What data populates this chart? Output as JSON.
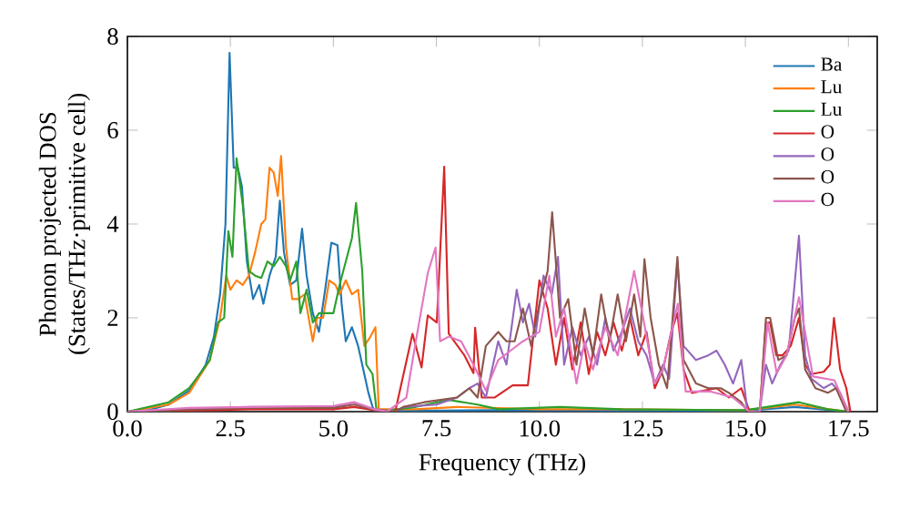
{
  "chart_data": {
    "type": "line",
    "xlabel": "Frequency (THz)",
    "ylabel": "Phonon projected DOS\n(States/THz·primitive cell)",
    "xlim": [
      0,
      18.2
    ],
    "ylim": [
      0,
      8
    ],
    "xticks": [
      {
        "value": 0,
        "label": "0.0"
      },
      {
        "value": 2.5,
        "label": "2.5"
      },
      {
        "value": 5,
        "label": "5.0"
      },
      {
        "value": 7.5,
        "label": "7.5"
      },
      {
        "value": 10,
        "label": "10.0"
      },
      {
        "value": 12.5,
        "label": "12.5"
      },
      {
        "value": 15,
        "label": "15.0"
      },
      {
        "value": 17.5,
        "label": "17.5"
      }
    ],
    "yticks": [
      0,
      2,
      4,
      6,
      8
    ],
    "grid": false,
    "legend": "top right",
    "marker": "none",
    "line_style": "solid",
    "series": [
      {
        "name": "Ba",
        "color": "#1f77b4",
        "x": [
          0,
          0.5,
          1.0,
          1.5,
          1.9,
          2.1,
          2.25,
          2.38,
          2.48,
          2.58,
          2.68,
          2.78,
          2.9,
          3.05,
          3.2,
          3.3,
          3.45,
          3.6,
          3.7,
          3.8,
          3.95,
          4.1,
          4.24,
          4.35,
          4.5,
          4.65,
          4.8,
          4.95,
          5.1,
          5.2,
          5.3,
          5.45,
          5.6,
          5.75,
          5.85,
          5.95,
          6.0,
          7.0,
          9.0,
          12.0,
          15.0,
          16.2,
          17.5
        ],
        "values": [
          0,
          0.03,
          0.15,
          0.45,
          1.0,
          1.6,
          2.5,
          4.0,
          7.65,
          5.2,
          5.2,
          4.8,
          3.2,
          2.4,
          2.7,
          2.3,
          2.9,
          3.3,
          4.5,
          3.4,
          2.7,
          2.8,
          3.9,
          2.9,
          2.1,
          1.7,
          2.6,
          3.6,
          3.55,
          2.3,
          1.5,
          1.8,
          1.4,
          0.8,
          0.4,
          0.1,
          0.02,
          0.02,
          0.03,
          0.02,
          0.02,
          0.1,
          0
        ]
      },
      {
        "name": "Lu",
        "color": "#ff7f0e",
        "x": [
          0,
          1.0,
          1.5,
          2.0,
          2.25,
          2.4,
          2.5,
          2.65,
          2.8,
          2.95,
          3.1,
          3.25,
          3.35,
          3.45,
          3.55,
          3.65,
          3.73,
          3.85,
          4.0,
          4.15,
          4.3,
          4.5,
          4.6,
          4.75,
          4.9,
          5.05,
          5.15,
          5.3,
          5.45,
          5.6,
          5.75,
          5.9,
          6.02,
          6.1,
          7.0,
          8.0,
          10.0,
          12.0,
          15.0,
          16.2,
          17.5
        ],
        "values": [
          0,
          0.15,
          0.4,
          1.1,
          2.0,
          2.9,
          2.6,
          2.8,
          2.7,
          2.9,
          3.4,
          4.0,
          4.1,
          5.2,
          5.1,
          4.6,
          5.45,
          3.5,
          2.4,
          2.4,
          2.5,
          1.5,
          2.0,
          2.0,
          2.8,
          2.7,
          2.5,
          2.8,
          2.5,
          2.6,
          1.4,
          1.6,
          1.8,
          0.05,
          0.05,
          0.1,
          0.05,
          0.05,
          0.03,
          0.15,
          0
        ]
      },
      {
        "name": "Lu",
        "color": "#2ca02c",
        "x": [
          0,
          1.0,
          1.5,
          1.8,
          2.0,
          2.2,
          2.35,
          2.45,
          2.55,
          2.65,
          2.8,
          2.95,
          3.1,
          3.25,
          3.4,
          3.55,
          3.7,
          3.85,
          3.95,
          4.1,
          4.2,
          4.35,
          4.5,
          4.65,
          4.85,
          5.0,
          5.15,
          5.3,
          5.45,
          5.55,
          5.7,
          5.8,
          5.95,
          6.05,
          7.0,
          7.8,
          8.5,
          9.0,
          10.5,
          12.0,
          15.0,
          16.3,
          17.0,
          17.5
        ],
        "values": [
          0,
          0.2,
          0.5,
          0.85,
          1.1,
          1.9,
          2.0,
          3.85,
          3.3,
          5.4,
          4.4,
          3.0,
          2.9,
          2.85,
          3.2,
          3.1,
          3.3,
          3.1,
          2.8,
          3.2,
          2.1,
          2.6,
          1.9,
          2.1,
          2.1,
          2.1,
          2.7,
          3.2,
          3.7,
          4.45,
          3.0,
          1.0,
          0.8,
          0,
          0.1,
          0.25,
          0.15,
          0.05,
          0.1,
          0.05,
          0.03,
          0.2,
          0.05,
          0
        ]
      },
      {
        "name": "O",
        "color": "#d62728",
        "x": [
          0,
          1.5,
          3.0,
          5.0,
          5.5,
          6.0,
          6.5,
          6.92,
          7.14,
          7.29,
          7.51,
          7.69,
          7.8,
          8.18,
          8.4,
          8.44,
          8.6,
          8.91,
          9.35,
          9.72,
          10.0,
          10.2,
          10.4,
          10.6,
          10.8,
          11.0,
          11.2,
          11.4,
          11.6,
          11.8,
          12.0,
          12.2,
          12.4,
          12.6,
          12.8,
          13.0,
          13.2,
          13.35,
          13.5,
          13.7,
          14.0,
          14.3,
          14.6,
          14.9,
          15.1,
          15.35,
          15.5,
          15.6,
          15.75,
          15.9,
          16.1,
          16.3,
          16.45,
          16.6,
          16.9,
          17.05,
          17.15,
          17.3,
          17.45,
          17.55
        ],
        "values": [
          0,
          0.02,
          0.05,
          0.05,
          0.1,
          0.03,
          0,
          1.66,
          0.94,
          2.05,
          1.9,
          5.22,
          1.66,
          1.2,
          0.82,
          1.79,
          0.3,
          0.3,
          0.56,
          0.56,
          2.8,
          2.2,
          1.0,
          2.0,
          0.9,
          1.9,
          0.8,
          1.7,
          1.2,
          1.9,
          1.3,
          2.0,
          1.2,
          1.7,
          0.5,
          0.9,
          1.7,
          2.1,
          0.9,
          0.4,
          0.45,
          0.5,
          0.3,
          0.5,
          0,
          0,
          1.9,
          1.9,
          1.2,
          1.2,
          1.4,
          2.0,
          1.0,
          0.8,
          0.85,
          1.0,
          2.0,
          0.9,
          0.5,
          0
        ]
      },
      {
        "name": "O",
        "color": "#9467bd",
        "x": [
          0,
          1.5,
          3.0,
          5.0,
          5.5,
          6.0,
          6.5,
          6.7,
          7.5,
          8.0,
          8.3,
          8.5,
          8.7,
          9.0,
          9.2,
          9.45,
          9.6,
          9.75,
          9.9,
          10.1,
          10.3,
          10.45,
          10.6,
          10.8,
          11.0,
          11.2,
          11.4,
          11.6,
          11.8,
          12.0,
          12.2,
          12.4,
          12.6,
          12.8,
          13.0,
          13.15,
          13.35,
          13.5,
          13.8,
          14.1,
          14.3,
          14.5,
          14.7,
          14.9,
          15.05,
          15.35,
          15.5,
          15.65,
          15.85,
          16.05,
          16.3,
          16.45,
          16.6,
          16.9,
          17.1,
          17.3,
          17.5
        ],
        "values": [
          0,
          0.05,
          0.1,
          0.1,
          0.2,
          0.05,
          0,
          0.1,
          0.15,
          0.3,
          0.5,
          0.6,
          0.3,
          1.5,
          1.0,
          2.6,
          1.9,
          2.3,
          1.6,
          2.9,
          2.5,
          3.3,
          1.0,
          1.8,
          1.2,
          1.6,
          1.0,
          2.0,
          1.3,
          1.7,
          2.2,
          1.5,
          1.2,
          0.6,
          1.0,
          0.7,
          3.2,
          1.4,
          1.1,
          1.2,
          1.3,
          1.0,
          0.6,
          1.1,
          0,
          0,
          1.0,
          0.6,
          1.0,
          1.3,
          3.75,
          1.2,
          0.7,
          0.5,
          0.6,
          0.4,
          0
        ]
      },
      {
        "name": "O",
        "color": "#8c564b",
        "x": [
          0,
          1.5,
          3.0,
          5.0,
          5.5,
          6.0,
          6.5,
          6.7,
          7.2,
          8.0,
          8.3,
          8.5,
          8.7,
          9.0,
          9.2,
          9.4,
          9.6,
          9.8,
          10.0,
          10.2,
          10.31,
          10.5,
          10.7,
          10.9,
          11.1,
          11.3,
          11.5,
          11.7,
          11.9,
          12.1,
          12.3,
          12.45,
          12.55,
          12.7,
          12.9,
          13.1,
          13.35,
          13.5,
          13.8,
          14.1,
          14.4,
          14.6,
          14.9,
          15.05,
          15.35,
          15.5,
          15.6,
          15.8,
          16.0,
          16.2,
          16.3,
          16.45,
          16.7,
          17.0,
          17.2,
          17.45
        ],
        "values": [
          0,
          0.04,
          0.08,
          0.08,
          0.15,
          0.04,
          0,
          0.1,
          0.2,
          0.3,
          0.5,
          0.3,
          1.4,
          1.7,
          1.5,
          1.5,
          2.2,
          1.4,
          2.3,
          3.0,
          4.25,
          2.0,
          2.4,
          1.0,
          2.2,
          1.2,
          2.5,
          1.5,
          2.5,
          1.5,
          2.5,
          1.6,
          3.25,
          2.0,
          1.0,
          0.5,
          3.3,
          1.1,
          0.6,
          0.5,
          0.5,
          0.4,
          0.2,
          0,
          0,
          2.0,
          2.0,
          1.1,
          1.2,
          2.0,
          2.2,
          0.9,
          0.5,
          0.4,
          0.5,
          0
        ]
      },
      {
        "name": "O",
        "color": "#e377c2",
        "x": [
          0,
          1.5,
          3.0,
          5.0,
          5.5,
          6.0,
          6.3,
          6.77,
          7.0,
          7.29,
          7.48,
          7.59,
          7.8,
          8.1,
          8.4,
          8.7,
          9.0,
          9.3,
          9.6,
          10.0,
          10.24,
          10.4,
          10.6,
          10.9,
          11.1,
          11.3,
          11.6,
          11.9,
          12.1,
          12.3,
          12.52,
          12.8,
          13.0,
          13.36,
          13.55,
          14.14,
          14.7,
          15.1,
          15.35,
          15.54,
          15.76,
          16.0,
          16.3,
          16.64,
          17.16,
          17.5
        ],
        "values": [
          0,
          0.08,
          0.1,
          0.12,
          0.2,
          0.05,
          0,
          0.3,
          1.5,
          2.95,
          3.5,
          1.5,
          1.6,
          1.5,
          1.0,
          0.45,
          1.1,
          1.3,
          1.5,
          1.7,
          2.9,
          1.6,
          2.2,
          0.6,
          1.5,
          0.9,
          1.8,
          1.2,
          2.1,
          3.0,
          2.0,
          0.6,
          0.9,
          2.3,
          0.43,
          0.43,
          0.3,
          0,
          0,
          1.9,
          0.82,
          1.2,
          2.44,
          0.75,
          0.67,
          0
        ]
      }
    ]
  }
}
